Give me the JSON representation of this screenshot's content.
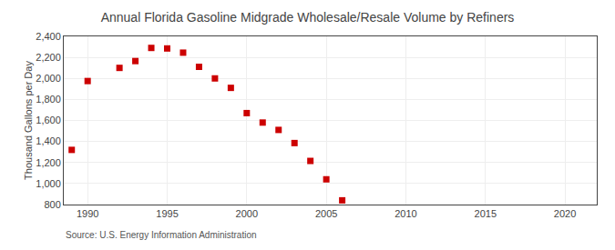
{
  "chart_data": {
    "type": "scatter",
    "title": "Annual Florida Gasoline Midgrade Wholesale/Resale Volume by Refiners",
    "ylabel": "Thousand Gallons per Day",
    "annotations": [
      "Source: U.S. Energy Information Administration"
    ],
    "x": [
      1989,
      1990,
      1992,
      1993,
      1994,
      1995,
      1996,
      1997,
      1998,
      1999,
      2000,
      2001,
      2002,
      2003,
      2004,
      2005,
      2006
    ],
    "values": [
      1320,
      1975,
      2100,
      2165,
      2290,
      2285,
      2245,
      2110,
      2000,
      1910,
      1670,
      1580,
      1510,
      1385,
      1215,
      1040,
      840
    ],
    "color": "#cc0000",
    "marker": "square",
    "xlim": [
      1988.5,
      2022
    ],
    "xticks": [
      1990,
      1995,
      2000,
      2005,
      2010,
      2015,
      2020
    ],
    "ylim": [
      800,
      2400
    ],
    "yticks": [
      800,
      {
        "value": 1000,
        "label": "1,000"
      },
      {
        "value": 1200,
        "label": "1,200"
      },
      {
        "value": 1400,
        "label": "1,400"
      },
      {
        "value": 1600,
        "label": "1,600"
      },
      {
        "value": 1800,
        "label": "1,800"
      },
      {
        "value": 2000,
        "label": "2,000"
      },
      {
        "value": 2200,
        "label": "2,200"
      },
      {
        "value": 2400,
        "label": "2,400"
      }
    ],
    "grid": true
  }
}
